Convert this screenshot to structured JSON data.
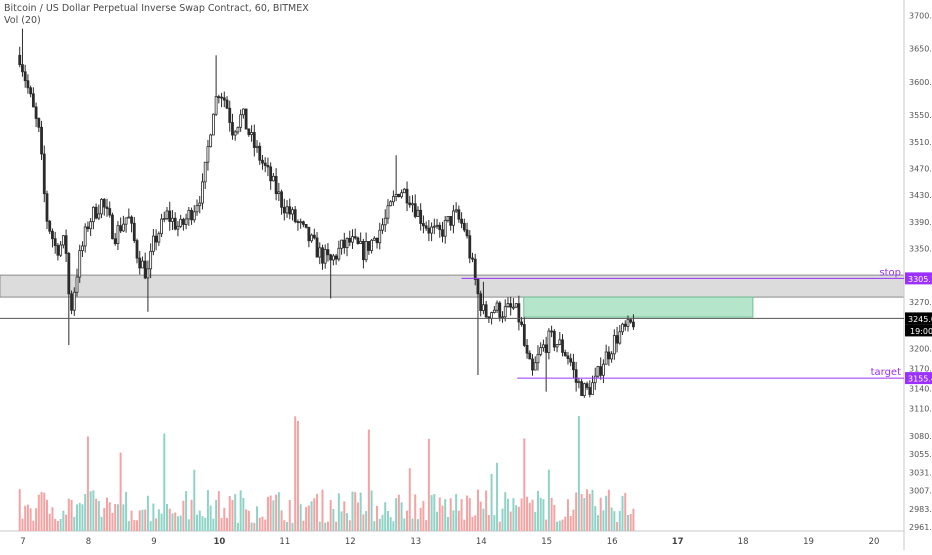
{
  "legend": {
    "symbol_line": "Bitcoin / US Dollar Perpetual Inverse Swap Contract, 60, BITMEX",
    "volume_line": "Vol (20)"
  },
  "colors": {
    "up": "#2b2b2b",
    "down": "#2b2b2b",
    "vol_up": "#8fd3c7",
    "vol_down": "#f3a3a3",
    "zone_fill": "#dcdcdc",
    "zone_border": "#8c8c8c",
    "box_fill": "#b5e6cc",
    "box_border": "#6fbf96",
    "level_line": "#9b30ff",
    "price_line": "#555555"
  },
  "chart_data": {
    "type": "candlestick",
    "symbol": "Bitcoin / US Dollar Perpetual Inverse Swap Contract",
    "interval": "60",
    "exchange": "BITMEX",
    "volume_indicator": "Vol (20)",
    "y_price_ticks": [
      "3700.0",
      "3650.0",
      "3600.0",
      "3550.0",
      "3510.0",
      "3470.0",
      "3430.0",
      "3390.0",
      "3350.0",
      "3270.0",
      "3245.0",
      "3200.0",
      "3170.0",
      "3140.0",
      "3110.0"
    ],
    "y_volume_ticks": [
      "3080.0",
      "3055.0",
      "3031.0",
      "3007.0",
      "2983.0",
      "2961.0"
    ],
    "x_ticks": [
      "7",
      "8",
      "9",
      "10",
      "11",
      "12",
      "13",
      "14",
      "15",
      "16",
      "17",
      "18",
      "19",
      "20"
    ],
    "bold_x_ticks": [
      "10",
      "17"
    ],
    "price_range": [
      3100,
      3705
    ],
    "current_price": {
      "value": 3245.0,
      "label": "3245.0",
      "time_label": "19:00"
    },
    "levels": [
      {
        "name": "stop",
        "value": 3305.1,
        "label": "3305.1"
      },
      {
        "name": "target",
        "value": 3155.4,
        "label": "3155.4"
      }
    ],
    "zones": [
      {
        "kind": "support-resistance",
        "from": 3277,
        "to": 3310
      },
      {
        "kind": "entry-box",
        "from": 3247,
        "to": 3277,
        "x_from": "14.65",
        "x_to": "18.15"
      }
    ],
    "close_path": [
      [
        6.95,
        3640
      ],
      [
        7.05,
        3600
      ],
      [
        7.15,
        3560
      ],
      [
        7.25,
        3520
      ],
      [
        7.35,
        3400
      ],
      [
        7.5,
        3350
      ],
      [
        7.65,
        3360
      ],
      [
        7.72,
        3250
      ],
      [
        7.85,
        3330
      ],
      [
        8.0,
        3390
      ],
      [
        8.2,
        3420
      ],
      [
        8.4,
        3370
      ],
      [
        8.6,
        3400
      ],
      [
        8.75,
        3340
      ],
      [
        8.9,
        3310
      ],
      [
        9.0,
        3360
      ],
      [
        9.2,
        3400
      ],
      [
        9.4,
        3380
      ],
      [
        9.6,
        3410
      ],
      [
        9.75,
        3440
      ],
      [
        9.9,
        3560
      ],
      [
        10.0,
        3590
      ],
      [
        10.1,
        3570
      ],
      [
        10.2,
        3530
      ],
      [
        10.35,
        3550
      ],
      [
        10.5,
        3510
      ],
      [
        10.65,
        3480
      ],
      [
        10.8,
        3450
      ],
      [
        10.95,
        3420
      ],
      [
        11.1,
        3400
      ],
      [
        11.25,
        3380
      ],
      [
        11.4,
        3360
      ],
      [
        11.55,
        3340
      ],
      [
        11.7,
        3330
      ],
      [
        11.85,
        3350
      ],
      [
        12.0,
        3360
      ],
      [
        12.2,
        3345
      ],
      [
        12.4,
        3370
      ],
      [
        12.55,
        3395
      ],
      [
        12.65,
        3420
      ],
      [
        12.75,
        3440
      ],
      [
        12.9,
        3430
      ],
      [
        13.05,
        3400
      ],
      [
        13.2,
        3380
      ],
      [
        13.35,
        3370
      ],
      [
        13.5,
        3390
      ],
      [
        13.6,
        3400
      ],
      [
        13.75,
        3380
      ],
      [
        13.85,
        3330
      ],
      [
        13.95,
        3280
      ],
      [
        14.05,
        3250
      ],
      [
        14.2,
        3260
      ],
      [
        14.35,
        3255
      ],
      [
        14.5,
        3260
      ],
      [
        14.6,
        3240
      ],
      [
        14.68,
        3190
      ],
      [
        14.78,
        3160
      ],
      [
        14.9,
        3195
      ],
      [
        15.05,
        3215
      ],
      [
        15.2,
        3205
      ],
      [
        15.35,
        3185
      ],
      [
        15.45,
        3150
      ],
      [
        15.6,
        3135
      ],
      [
        15.75,
        3150
      ],
      [
        15.85,
        3180
      ],
      [
        15.95,
        3195
      ],
      [
        16.05,
        3215
      ],
      [
        16.15,
        3225
      ],
      [
        16.25,
        3230
      ],
      [
        16.35,
        3245
      ]
    ]
  }
}
